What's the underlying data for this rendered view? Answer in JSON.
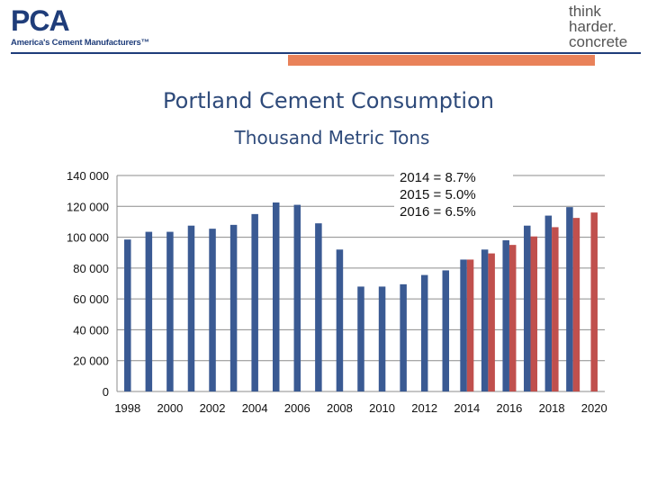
{
  "brand": {
    "pca_mark": "PCA",
    "pca_tagline": "America's Cement Manufacturers™",
    "think_lines": [
      "think",
      "harder.",
      "concrete"
    ]
  },
  "colors": {
    "brand_blue": "#1f3d7a",
    "accent_orange": "#e9825a",
    "bar_blue": "#3a5a93",
    "bar_red": "#c0504d",
    "grid": "#8c8c8c",
    "title": "#2e4a7a"
  },
  "chart_data": {
    "type": "bar",
    "title": "Portland Cement Consumption",
    "subtitle": "Thousand Metric Tons",
    "xlabel": "",
    "ylabel": "",
    "ylim": [
      0,
      140000
    ],
    "ytick_labels": [
      "0",
      "20 000",
      "40 000",
      "60 000",
      "80 000",
      "100 000",
      "120 000",
      "140 000"
    ],
    "xtick_labels": [
      "1998",
      "2000",
      "2002",
      "2004",
      "2006",
      "2008",
      "2010",
      "2012",
      "2014",
      "2016",
      "2018",
      "2020"
    ],
    "categories": [
      "1998",
      "1999",
      "2000",
      "2001",
      "2002",
      "2003",
      "2004",
      "2005",
      "2006",
      "2007",
      "2008",
      "2009",
      "2010",
      "2011",
      "2012",
      "2013",
      "2014",
      "2015",
      "2016",
      "2017",
      "2018",
      "2019",
      "2020"
    ],
    "grid": true,
    "series": [
      {
        "values": [
          98500,
          103500,
          103500,
          107500,
          105500,
          108000,
          115000,
          122500,
          121000,
          109000,
          92000,
          68000,
          68000,
          69500,
          75500,
          78500,
          85500,
          92000,
          98000,
          107500,
          114000,
          119500,
          null
        ]
      },
      {
        "values": [
          null,
          null,
          null,
          null,
          null,
          null,
          null,
          null,
          null,
          null,
          null,
          null,
          null,
          null,
          null,
          null,
          85500,
          89500,
          95000,
          100500,
          106500,
          112500,
          116000
        ]
      }
    ],
    "annotation": [
      "2014 = 8.7%",
      "2015 = 5.0%",
      "2016 = 6.5%"
    ]
  }
}
